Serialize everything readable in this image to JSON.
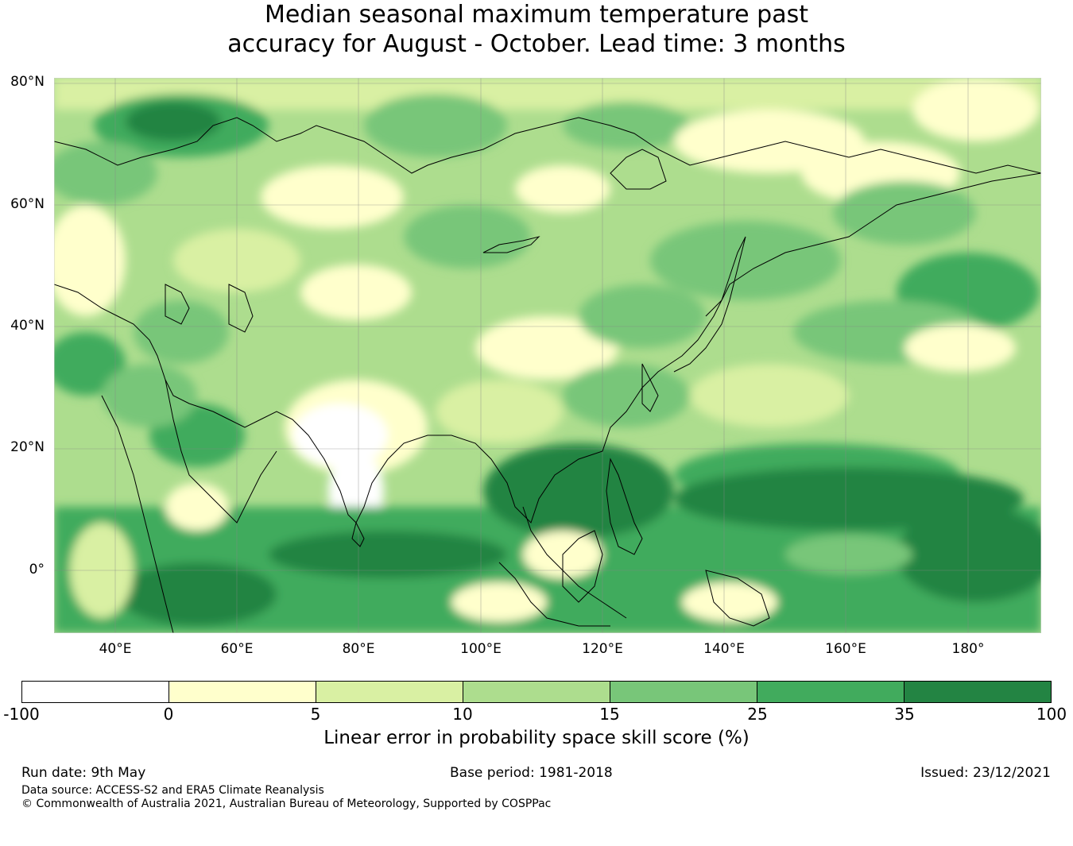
{
  "title": {
    "line1": "Median seasonal maximum temperature past",
    "line2": "accuracy for August - October. Lead time: 3 months"
  },
  "map": {
    "lat_labels": [
      "80°N",
      "60°N",
      "40°N",
      "20°N",
      "0°"
    ],
    "lon_labels": [
      "40°E",
      "60°E",
      "80°E",
      "100°E",
      "120°E",
      "140°E",
      "160°E",
      "180°"
    ],
    "land_outline_color": "#000000",
    "gridline_color": "#888888"
  },
  "colorbar": {
    "ticks": [
      "-100",
      "0",
      "5",
      "10",
      "15",
      "25",
      "35",
      "100"
    ],
    "colors": [
      "#ffffff",
      "#ffffcc",
      "#d9f0a3",
      "#addd8e",
      "#78c679",
      "#41ab5d",
      "#238443"
    ],
    "label": "Linear error in probability space skill score (%)"
  },
  "footer": {
    "run_date": "Run date: 9th May",
    "base_period": "Base period: 1981-2018",
    "issued": "Issued: 23/12/2021",
    "data_source": "Data source: ACCESS-S2 and ERA5 Climate Reanalysis",
    "copyright": "© Commonwealth of Australia 2021, Australian Bureau of Meteorology, Supported by COSPPac"
  }
}
